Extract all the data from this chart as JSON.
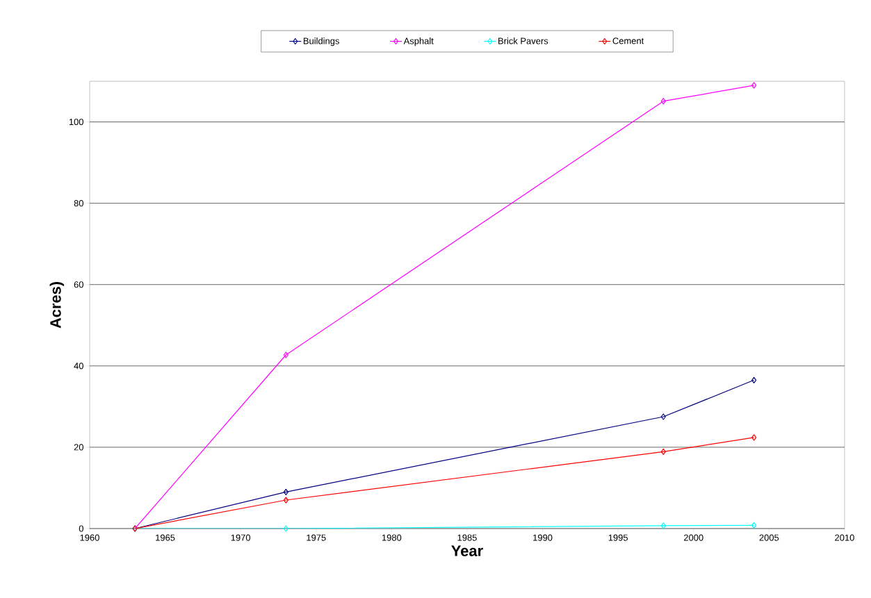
{
  "chart_data": {
    "type": "line",
    "xlabel": "Year",
    "ylabel": "Acres)",
    "x": [
      1963,
      1973,
      1998,
      2004
    ],
    "series": [
      {
        "name": "Buildings",
        "color": "#000080",
        "values": [
          0,
          9.0,
          27.5,
          36.5
        ]
      },
      {
        "name": "Asphalt",
        "color": "#ff00ff",
        "values": [
          0,
          42.7,
          105.1,
          109.0
        ]
      },
      {
        "name": "Brick Pavers",
        "color": "#00ffff",
        "values": [
          0,
          0,
          0.7,
          0.8
        ]
      },
      {
        "name": "Cement",
        "color": "#ff0000",
        "values": [
          0,
          7.0,
          18.9,
          22.4
        ]
      }
    ],
    "xlim": [
      1960,
      2010
    ],
    "xticks": [
      1960,
      1965,
      1970,
      1975,
      1980,
      1985,
      1990,
      1995,
      2000,
      2005,
      2010
    ],
    "ylim": [
      0,
      110
    ],
    "yticks": [
      0,
      20,
      40,
      60,
      80,
      100
    ],
    "grid": "y",
    "legend": "top",
    "marker": "diamond",
    "line_style": "solid"
  }
}
